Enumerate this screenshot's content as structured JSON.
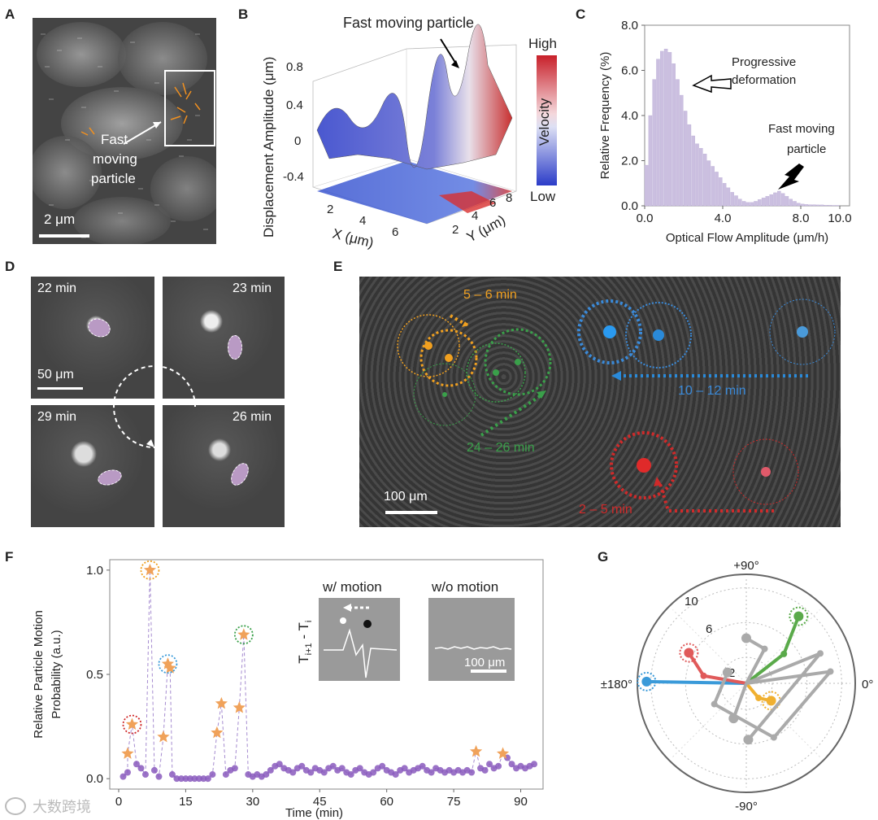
{
  "panels": {
    "A": "A",
    "B": "B",
    "C": "C",
    "D": "D",
    "E": "E",
    "F": "F",
    "G": "G"
  },
  "panelA": {
    "label": "Fast\nmoving\nparticle",
    "label_lines": [
      "Fast",
      "moving",
      "particle"
    ],
    "scalebar": "2 μm"
  },
  "panelB": {
    "annotation": "Fast moving particle",
    "zlabel": "Displacement Amplitude (μm)",
    "zticks": [
      "0.8",
      "0.4",
      "0",
      "-0.4"
    ],
    "xlabel": "X (μm)",
    "xticks": [
      "2",
      "4",
      "6"
    ],
    "ylabel": "Y (μm)",
    "yticks": [
      "2",
      "4",
      "6",
      "8"
    ],
    "colorbar": {
      "high": "High",
      "low": "Low",
      "label": "Velocity",
      "colors": [
        "#c8202a",
        "#ffffff",
        "#2b3cc8"
      ]
    }
  },
  "chart_data": [
    {
      "panel": "C",
      "type": "bar",
      "xlabel": "Optical Flow Amplitude (μm/h)",
      "ylabel": "Relative Frequency (%)",
      "xlim": [
        0,
        10.5
      ],
      "ylim": [
        0,
        8
      ],
      "xticks": [
        "0.0",
        "4.0",
        "8.0",
        "10.0"
      ],
      "yticks": [
        "0.0",
        "2.0",
        "4.0",
        "6.0",
        "8.0"
      ],
      "bin_width": 0.2,
      "x": [
        0.1,
        0.3,
        0.5,
        0.7,
        0.9,
        1.1,
        1.3,
        1.5,
        1.7,
        1.9,
        2.1,
        2.3,
        2.5,
        2.7,
        2.9,
        3.1,
        3.3,
        3.5,
        3.7,
        3.9,
        4.1,
        4.3,
        4.5,
        4.7,
        4.9,
        5.1,
        5.3,
        5.5,
        5.7,
        5.9,
        6.1,
        6.3,
        6.5,
        6.7,
        6.9,
        7.1,
        7.3,
        7.5,
        7.7,
        7.9,
        8.1,
        8.3,
        8.5,
        8.7,
        8.9,
        9.1,
        9.3,
        9.5,
        9.7,
        9.9
      ],
      "values": [
        1.8,
        4.0,
        5.6,
        6.5,
        6.85,
        6.95,
        6.8,
        6.3,
        5.6,
        4.9,
        4.2,
        3.6,
        3.1,
        2.75,
        2.55,
        2.3,
        2.0,
        1.75,
        1.5,
        1.25,
        1.0,
        0.8,
        0.6,
        0.45,
        0.3,
        0.2,
        0.15,
        0.15,
        0.2,
        0.28,
        0.35,
        0.42,
        0.5,
        0.58,
        0.65,
        0.55,
        0.42,
        0.3,
        0.2,
        0.12,
        0.08,
        0.06,
        0.05,
        0.05,
        0.04,
        0.04,
        0.03,
        0.03,
        0.02,
        0.02
      ],
      "color": "#cbbfe0",
      "annotations": [
        "Progressive\ndeformation",
        "Fast moving\nparticle"
      ],
      "annotation_lines": [
        [
          "Progressive",
          "deformation"
        ],
        [
          "Fast moving",
          "particle"
        ]
      ]
    },
    {
      "panel": "F",
      "type": "scatter",
      "xlabel": "Time (min)",
      "ylabel": "Relative Particle Motion Probability (a.u.)",
      "ylabel_lines": [
        "Relative Particle Motion",
        "Probability (a.u.)"
      ],
      "xlim": [
        -2,
        95
      ],
      "ylim": [
        -0.05,
        1.05
      ],
      "xticks": [
        "0",
        "15",
        "30",
        "45",
        "60",
        "75",
        "90"
      ],
      "yticks": [
        "0.0",
        "0.5",
        "1.0"
      ],
      "series": [
        {
          "marker": "circle",
          "color": "#8a5bbd",
          "x": [
            1,
            2,
            4,
            5,
            6,
            8,
            9,
            12,
            13,
            14,
            15,
            16,
            17,
            18,
            19,
            20,
            21,
            24,
            25,
            26,
            29,
            30,
            31,
            32,
            33,
            34,
            35,
            36,
            37,
            38,
            39,
            40,
            41,
            42,
            43,
            44,
            45,
            46,
            47,
            48,
            49,
            50,
            51,
            52,
            53,
            54,
            55,
            56,
            57,
            58,
            59,
            60,
            61,
            62,
            63,
            64,
            65,
            66,
            67,
            68,
            69,
            70,
            71,
            72,
            73,
            74,
            75,
            76,
            77,
            78,
            79,
            81,
            82,
            83,
            84,
            85,
            87,
            88,
            89,
            90,
            91,
            92,
            93
          ],
          "y": [
            0.01,
            0.03,
            0.07,
            0.05,
            0.02,
            0.04,
            0.01,
            0.02,
            0.0,
            0.0,
            0.0,
            0.0,
            0.0,
            0.0,
            0.0,
            0.0,
            0.02,
            0.02,
            0.04,
            0.05,
            0.02,
            0.01,
            0.02,
            0.01,
            0.02,
            0.04,
            0.06,
            0.07,
            0.05,
            0.04,
            0.03,
            0.05,
            0.06,
            0.04,
            0.03,
            0.05,
            0.04,
            0.03,
            0.05,
            0.06,
            0.04,
            0.05,
            0.03,
            0.02,
            0.04,
            0.05,
            0.03,
            0.02,
            0.03,
            0.05,
            0.06,
            0.04,
            0.03,
            0.02,
            0.04,
            0.05,
            0.03,
            0.04,
            0.05,
            0.06,
            0.04,
            0.03,
            0.05,
            0.04,
            0.03,
            0.04,
            0.03,
            0.04,
            0.03,
            0.04,
            0.03,
            0.05,
            0.04,
            0.07,
            0.05,
            0.06,
            0.1,
            0.07,
            0.05,
            0.06,
            0.05,
            0.06,
            0.07
          ]
        },
        {
          "marker": "star",
          "color": "#f0a25a",
          "x": [
            2,
            3,
            7,
            10,
            11,
            11.5,
            22,
            23,
            27,
            28,
            80,
            86
          ],
          "y": [
            0.12,
            0.26,
            1.0,
            0.2,
            0.55,
            0.53,
            0.22,
            0.36,
            0.34,
            0.69,
            0.13,
            0.12
          ]
        }
      ],
      "highlighted": [
        {
          "x": 3,
          "y": 0.26,
          "color": "#d02a2a"
        },
        {
          "x": 7,
          "y": 1.0,
          "color": "#f0a020"
        },
        {
          "x": 11,
          "y": 0.55,
          "color": "#3a9ad9"
        },
        {
          "x": 28,
          "y": 0.69,
          "color": "#3aa04a"
        }
      ],
      "inset": {
        "title_with": "w/ motion",
        "title_without": "w/o motion",
        "ylabel": "T",
        "ylabel_sub1": "i+1",
        "ylabel_sep": " - T",
        "ylabel_sub2": "i",
        "scalebar": "100 μm"
      }
    },
    {
      "panel": "G",
      "type": "scatter",
      "subtype": "polar",
      "angle_labels": [
        "+90°",
        "0°",
        "-90°",
        "±180°"
      ],
      "radial_ticks": [
        "2",
        "6",
        "10"
      ],
      "rmax": 12,
      "trajectories": [
        {
          "color": "#f0b030",
          "points": [
            [
              0,
              0
            ],
            [
              2.2,
              -50
            ],
            [
              3.5,
              -35
            ]
          ],
          "end_highlight": true
        },
        {
          "color": "#3a9ad9",
          "points": [
            [
              0,
              0
            ],
            [
              11.5,
              179
            ]
          ],
          "end_highlight": true
        },
        {
          "color": "#e05a5a",
          "points": [
            [
              0,
              0
            ],
            [
              5.0,
              170
            ],
            [
              7.5,
              152
            ]
          ],
          "end_highlight": true
        },
        {
          "color": "#5aaa4a",
          "points": [
            [
              0,
              0
            ],
            [
              5.5,
              38
            ],
            [
              9.8,
              52
            ]
          ],
          "end_highlight": true
        },
        {
          "color": "#aaaaaa",
          "points": [
            [
              0,
              0
            ],
            [
              4.5,
              62
            ],
            [
              5.2,
              90
            ]
          ]
        },
        {
          "color": "#aaaaaa",
          "points": [
            [
              0,
              0
            ],
            [
              9.8,
              8
            ],
            [
              7.0,
              -63
            ],
            [
              4.4,
              -147
            ],
            [
              2.5,
              -210
            ]
          ]
        },
        {
          "color": "#aaaaaa",
          "points": [
            [
              0,
              0
            ],
            [
              9.2,
              22
            ],
            [
              6.5,
              -88
            ]
          ]
        },
        {
          "color": "#aaaaaa",
          "points": [
            [
              0,
              0
            ],
            [
              4.3,
              -110
            ]
          ]
        }
      ]
    }
  ],
  "panelD": {
    "times": [
      "22 min",
      "23 min",
      "29 min",
      "26 min"
    ],
    "scalebar": "50 μm"
  },
  "panelE": {
    "labels": [
      {
        "text": "5 – 6 min",
        "color": "#f0a020"
      },
      {
        "text": "10 – 12 min",
        "color": "#3a8ad9"
      },
      {
        "text": "24 – 26 min",
        "color": "#3aa04a"
      },
      {
        "text": "2 – 5 min",
        "color": "#d02a2a"
      }
    ],
    "scalebar": "100 μm"
  },
  "watermark": "大数跨境"
}
